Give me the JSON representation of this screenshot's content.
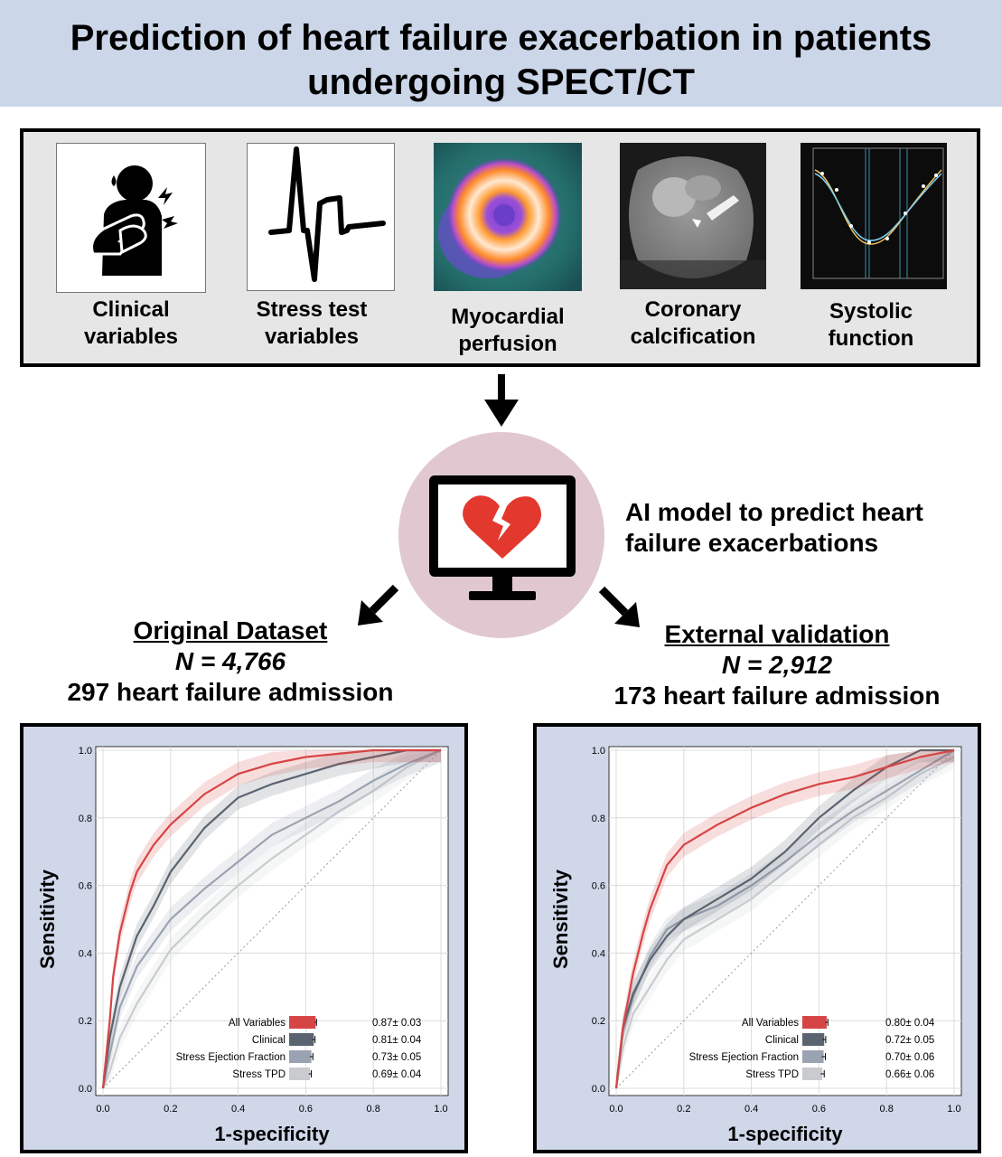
{
  "title": {
    "line1": "Prediction of heart failure exacerbation in patients",
    "line2": "undergoing SPECT/CT"
  },
  "inputs": [
    {
      "label_line1": "Clinical",
      "label_line2": "variables",
      "icon": "patient-chest-pain-icon"
    },
    {
      "label_line1": "Stress test",
      "label_line2": "variables",
      "icon": "ecg-waveform-icon"
    },
    {
      "label_line1": "Myocardial",
      "label_line2": "perfusion",
      "icon": "perfusion-polar-map-image"
    },
    {
      "label_line1": "Coronary",
      "label_line2": "calcification",
      "icon": "ct-scan-image"
    },
    {
      "label_line1": "Systolic",
      "label_line2": "function",
      "icon": "volume-curve-plot"
    }
  ],
  "ai_model": {
    "line1": "AI model to predict heart",
    "line2": "failure exacerbations",
    "icon": "monitor-broken-heart-icon"
  },
  "datasets": [
    {
      "name": "Original Dataset",
      "n": "N = 4,766",
      "admissions": "297 heart failure admission"
    },
    {
      "name": "External validation",
      "n": "N = 2,912",
      "admissions": "173 heart failure admission"
    }
  ],
  "colors": {
    "all_variables": "#d64545",
    "clinical": "#5a6470",
    "stress_ef": "#9aa3b2",
    "stress_tpd": "#c9cbcf",
    "panel_bg": "#cfd7e9",
    "title_bg": "#cbd6e9"
  },
  "chart_data": [
    {
      "type": "line",
      "xlabel": "1-specificity",
      "ylabel": "Sensitivity",
      "xlim": [
        0,
        1
      ],
      "ylim": [
        0,
        1
      ],
      "xticks": [
        "0.0",
        "0.2",
        "0.4",
        "0.6",
        "0.8",
        "1.0"
      ],
      "yticks": [
        "0.0",
        "0.2",
        "0.4",
        "0.6",
        "0.8",
        "1.0"
      ],
      "grid": true,
      "legend": "bottom-right",
      "series": [
        {
          "name": "All Variables",
          "auc": 0.87,
          "auc_sd": 0.03,
          "auc_label": "0.87± 0.03",
          "x": [
            0,
            0.01,
            0.02,
            0.03,
            0.05,
            0.08,
            0.1,
            0.15,
            0.2,
            0.3,
            0.4,
            0.5,
            0.6,
            0.8,
            1.0
          ],
          "y": [
            0,
            0.1,
            0.2,
            0.33,
            0.46,
            0.58,
            0.64,
            0.72,
            0.78,
            0.87,
            0.93,
            0.96,
            0.98,
            1.0,
            1.0
          ]
        },
        {
          "name": "Clinical",
          "auc": 0.81,
          "auc_sd": 0.04,
          "auc_label": "0.81± 0.04",
          "x": [
            0,
            0.02,
            0.05,
            0.08,
            0.1,
            0.15,
            0.2,
            0.3,
            0.4,
            0.5,
            0.6,
            0.7,
            0.8,
            0.9,
            1.0
          ],
          "y": [
            0,
            0.15,
            0.3,
            0.39,
            0.45,
            0.54,
            0.64,
            0.77,
            0.86,
            0.9,
            0.93,
            0.96,
            0.98,
            1.0,
            1.0
          ]
        },
        {
          "name": "Stress Ejection Fraction",
          "auc": 0.73,
          "auc_sd": 0.05,
          "auc_label": "0.73± 0.05",
          "x": [
            0,
            0.02,
            0.05,
            0.1,
            0.15,
            0.2,
            0.3,
            0.4,
            0.5,
            0.6,
            0.7,
            0.8,
            0.9,
            1.0
          ],
          "y": [
            0,
            0.1,
            0.24,
            0.36,
            0.43,
            0.5,
            0.59,
            0.67,
            0.75,
            0.8,
            0.85,
            0.91,
            0.96,
            1.0
          ]
        },
        {
          "name": "Stress TPD",
          "auc": 0.69,
          "auc_sd": 0.04,
          "auc_label": "0.69± 0.04",
          "x": [
            0,
            0.02,
            0.05,
            0.1,
            0.15,
            0.2,
            0.3,
            0.4,
            0.5,
            0.6,
            0.7,
            0.8,
            0.9,
            1.0
          ],
          "y": [
            0,
            0.05,
            0.15,
            0.25,
            0.33,
            0.41,
            0.51,
            0.6,
            0.68,
            0.75,
            0.82,
            0.88,
            0.95,
            1.0
          ]
        }
      ]
    },
    {
      "type": "line",
      "xlabel": "1-specificity",
      "ylabel": "Sensitivity",
      "xlim": [
        0,
        1
      ],
      "ylim": [
        0,
        1
      ],
      "xticks": [
        "0.0",
        "0.2",
        "0.4",
        "0.6",
        "0.8",
        "1.0"
      ],
      "yticks": [
        "0.0",
        "0.2",
        "0.4",
        "0.6",
        "0.8",
        "1.0"
      ],
      "grid": true,
      "legend": "bottom-right",
      "series": [
        {
          "name": "All Variables",
          "auc": 0.8,
          "auc_sd": 0.04,
          "auc_label": "0.80± 0.04",
          "x": [
            0,
            0.02,
            0.05,
            0.08,
            0.1,
            0.15,
            0.2,
            0.3,
            0.4,
            0.5,
            0.6,
            0.7,
            0.8,
            0.9,
            1.0
          ],
          "y": [
            0,
            0.18,
            0.34,
            0.46,
            0.53,
            0.66,
            0.72,
            0.78,
            0.83,
            0.87,
            0.9,
            0.92,
            0.95,
            0.98,
            1.0
          ]
        },
        {
          "name": "Clinical",
          "auc": 0.72,
          "auc_sd": 0.05,
          "auc_label": "0.72± 0.05",
          "x": [
            0,
            0.02,
            0.05,
            0.1,
            0.15,
            0.2,
            0.3,
            0.4,
            0.5,
            0.6,
            0.7,
            0.8,
            0.9,
            1.0
          ],
          "y": [
            0,
            0.18,
            0.28,
            0.38,
            0.45,
            0.5,
            0.56,
            0.62,
            0.7,
            0.8,
            0.88,
            0.95,
            1.0,
            1.0
          ]
        },
        {
          "name": "Stress Ejection Fraction",
          "auc": 0.7,
          "auc_sd": 0.06,
          "auc_label": "0.70± 0.06",
          "x": [
            0,
            0.02,
            0.05,
            0.1,
            0.15,
            0.2,
            0.3,
            0.4,
            0.5,
            0.6,
            0.7,
            0.8,
            0.9,
            1.0
          ],
          "y": [
            0,
            0.17,
            0.27,
            0.39,
            0.47,
            0.5,
            0.54,
            0.6,
            0.67,
            0.75,
            0.82,
            0.88,
            0.94,
            1.0
          ]
        },
        {
          "name": "Stress TPD",
          "auc": 0.66,
          "auc_sd": 0.06,
          "auc_label": "0.66± 0.06",
          "x": [
            0,
            0.02,
            0.05,
            0.1,
            0.15,
            0.2,
            0.3,
            0.4,
            0.5,
            0.6,
            0.7,
            0.8,
            0.9,
            1.0
          ],
          "y": [
            0,
            0.12,
            0.22,
            0.3,
            0.38,
            0.44,
            0.5,
            0.56,
            0.64,
            0.72,
            0.8,
            0.86,
            0.93,
            0.98
          ]
        }
      ]
    }
  ]
}
